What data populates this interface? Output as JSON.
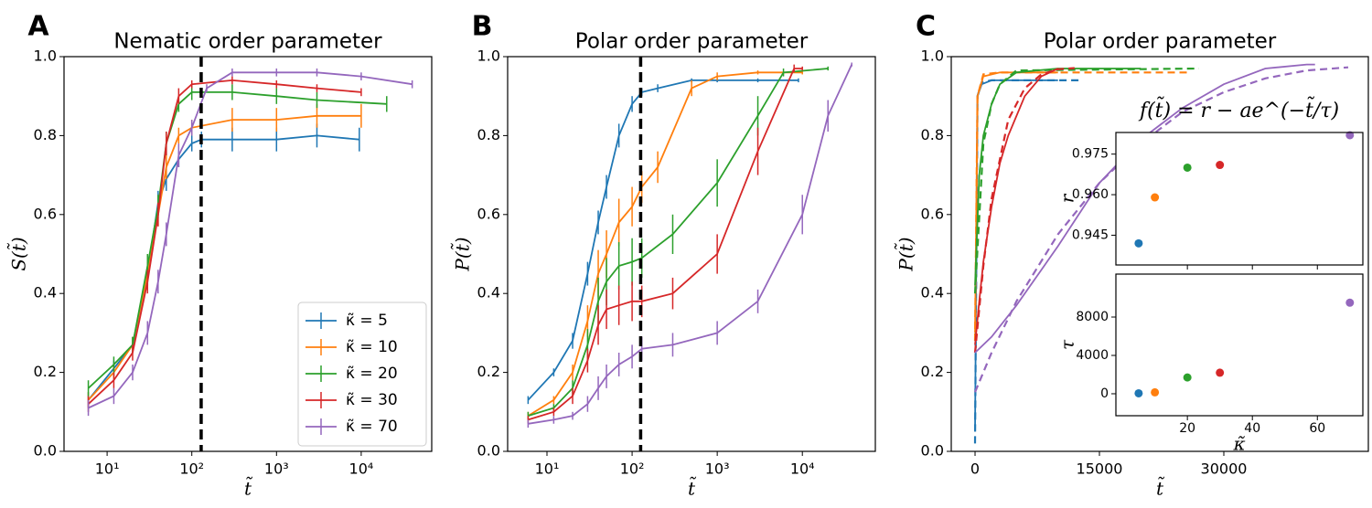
{
  "chart_data": [
    {
      "type": "line",
      "panel_label": "A",
      "title": "Nematic order parameter",
      "xlabel": "t̃",
      "ylabel": "S(t̃)",
      "xscale": "log",
      "xlim": [
        3.1,
        68000
      ],
      "ylim": [
        0,
        1
      ],
      "xticks": [
        {
          "value": 10,
          "label": "10¹"
        },
        {
          "value": 100,
          "label": "10²"
        },
        {
          "value": 1000,
          "label": "10³"
        },
        {
          "value": 10000,
          "label": "10⁴"
        }
      ],
      "yticks": [
        {
          "value": 0,
          "label": "0.0"
        },
        0.2,
        0.4,
        0.6,
        0.8,
        {
          "value": 1,
          "label": "1.0"
        }
      ],
      "vline": 129,
      "legend": "lower right",
      "series": [
        {
          "name": "κ̃ = 5",
          "color": "#1f77b4",
          "x": [
            6,
            12,
            20,
            30,
            40,
            50,
            70,
            100,
            130,
            300,
            1000,
            3000,
            9500
          ],
          "values": [
            0.13,
            0.21,
            0.27,
            0.45,
            0.63,
            0.69,
            0.74,
            0.78,
            0.79,
            0.79,
            0.79,
            0.8,
            0.79
          ],
          "errors": [
            0.02,
            0.02,
            0.02,
            0.03,
            0.03,
            0.03,
            0.02,
            0.02,
            0.02,
            0.03,
            0.03,
            0.03,
            0.03
          ]
        },
        {
          "name": "κ̃ = 10",
          "color": "#ff7f0e",
          "x": [
            6,
            12,
            20,
            30,
            40,
            50,
            70,
            100,
            300,
            1000,
            3000,
            10000
          ],
          "values": [
            0.13,
            0.2,
            0.27,
            0.45,
            0.6,
            0.72,
            0.8,
            0.82,
            0.84,
            0.84,
            0.85,
            0.85
          ],
          "errors": [
            0.02,
            0.02,
            0.02,
            0.03,
            0.03,
            0.03,
            0.02,
            0.02,
            0.03,
            0.03,
            0.03,
            0.03
          ]
        },
        {
          "name": "κ̃ = 20",
          "color": "#2ca02c",
          "x": [
            6,
            12,
            20,
            30,
            40,
            50,
            70,
            100,
            300,
            1000,
            3000,
            20000
          ],
          "values": [
            0.16,
            0.22,
            0.27,
            0.47,
            0.62,
            0.78,
            0.88,
            0.91,
            0.91,
            0.9,
            0.89,
            0.88
          ],
          "errors": [
            0.02,
            0.02,
            0.02,
            0.03,
            0.03,
            0.03,
            0.02,
            0.02,
            0.02,
            0.02,
            0.02,
            0.02
          ]
        },
        {
          "name": "κ̃ = 30",
          "color": "#d62728",
          "x": [
            6,
            12,
            20,
            30,
            40,
            50,
            70,
            100,
            300,
            1000,
            3000,
            10000
          ],
          "values": [
            0.12,
            0.18,
            0.25,
            0.43,
            0.6,
            0.78,
            0.9,
            0.93,
            0.94,
            0.93,
            0.92,
            0.91
          ],
          "errors": [
            0.02,
            0.02,
            0.02,
            0.03,
            0.03,
            0.03,
            0.02,
            0.01,
            0.01,
            0.01,
            0.01,
            0.01
          ]
        },
        {
          "name": "κ̃ = 70",
          "color": "#9467bd",
          "x": [
            6,
            12,
            20,
            30,
            40,
            50,
            70,
            100,
            150,
            300,
            1000,
            3000,
            10000,
            40000
          ],
          "values": [
            0.11,
            0.14,
            0.2,
            0.3,
            0.43,
            0.55,
            0.75,
            0.82,
            0.92,
            0.96,
            0.96,
            0.96,
            0.95,
            0.93
          ],
          "errors": [
            0.02,
            0.02,
            0.02,
            0.03,
            0.03,
            0.03,
            0.03,
            0.02,
            0.01,
            0.01,
            0.01,
            0.01,
            0.01,
            0.01
          ]
        }
      ]
    },
    {
      "type": "line",
      "panel_label": "B",
      "title": "Polar order parameter",
      "xlabel": "t̃",
      "ylabel": "P(t̃)",
      "xscale": "log",
      "xlim": [
        3.45,
        72000
      ],
      "ylim": [
        0,
        1
      ],
      "xticks": [
        {
          "value": 10,
          "label": "10¹"
        },
        {
          "value": 100,
          "label": "10²"
        },
        {
          "value": 1000,
          "label": "10³"
        },
        {
          "value": 10000,
          "label": "10⁴"
        }
      ],
      "yticks": [
        {
          "value": 0,
          "label": "0.0"
        },
        0.2,
        0.4,
        0.6,
        0.8,
        {
          "value": 1,
          "label": "1.0"
        }
      ],
      "vline": 126,
      "series": [
        {
          "color": "#1f77b4",
          "x": [
            6,
            12,
            20,
            30,
            40,
            50,
            70,
            100,
            130,
            200,
            500,
            1000,
            3000,
            9000
          ],
          "values": [
            0.13,
            0.2,
            0.28,
            0.45,
            0.58,
            0.67,
            0.8,
            0.88,
            0.91,
            0.92,
            0.94,
            0.94,
            0.94,
            0.94
          ],
          "errors": [
            0.01,
            0.01,
            0.02,
            0.03,
            0.03,
            0.03,
            0.03,
            0.02,
            0.01,
            0.01,
            0.005,
            0.005,
            0.005,
            0.005
          ]
        },
        {
          "color": "#ff7f0e",
          "x": [
            6,
            12,
            20,
            30,
            40,
            50,
            70,
            100,
            130,
            200,
            500,
            1000,
            3000,
            10000
          ],
          "values": [
            0.09,
            0.13,
            0.2,
            0.33,
            0.45,
            0.5,
            0.58,
            0.62,
            0.67,
            0.72,
            0.92,
            0.95,
            0.96,
            0.96
          ],
          "errors": [
            0.01,
            0.01,
            0.02,
            0.04,
            0.06,
            0.06,
            0.06,
            0.05,
            0.04,
            0.04,
            0.02,
            0.01,
            0.005,
            0.005
          ]
        },
        {
          "color": "#2ca02c",
          "x": [
            6,
            12,
            20,
            30,
            40,
            50,
            70,
            100,
            130,
            300,
            1000,
            3000,
            6000,
            20000
          ],
          "values": [
            0.09,
            0.11,
            0.16,
            0.27,
            0.38,
            0.43,
            0.47,
            0.48,
            0.49,
            0.55,
            0.68,
            0.85,
            0.96,
            0.97
          ],
          "errors": [
            0.01,
            0.01,
            0.02,
            0.04,
            0.06,
            0.06,
            0.06,
            0.06,
            0.05,
            0.05,
            0.06,
            0.05,
            0.01,
            0.005
          ]
        },
        {
          "color": "#d62728",
          "x": [
            6,
            12,
            20,
            30,
            40,
            50,
            70,
            100,
            130,
            300,
            1000,
            3000,
            8000,
            10000
          ],
          "values": [
            0.08,
            0.1,
            0.14,
            0.23,
            0.32,
            0.36,
            0.37,
            0.38,
            0.38,
            0.4,
            0.5,
            0.76,
            0.97,
            0.97
          ],
          "errors": [
            0.01,
            0.01,
            0.02,
            0.03,
            0.05,
            0.05,
            0.05,
            0.05,
            0.04,
            0.04,
            0.05,
            0.06,
            0.01,
            0.005
          ]
        },
        {
          "color": "#9467bd",
          "x": [
            6,
            12,
            20,
            30,
            40,
            50,
            70,
            100,
            130,
            300,
            1000,
            3000,
            10000,
            20000,
            38000
          ],
          "values": [
            0.07,
            0.08,
            0.09,
            0.12,
            0.16,
            0.19,
            0.22,
            0.24,
            0.26,
            0.27,
            0.3,
            0.38,
            0.6,
            0.85,
            0.98
          ],
          "errors": [
            0.01,
            0.01,
            0.01,
            0.02,
            0.03,
            0.03,
            0.03,
            0.03,
            0.03,
            0.03,
            0.03,
            0.03,
            0.05,
            0.04,
            0.005
          ]
        }
      ]
    },
    {
      "type": "line",
      "panel_label": "C",
      "title": "Polar order parameter",
      "xlabel": "t̃",
      "ylabel": "P(t̃)",
      "xlim": [
        -2870,
        47430
      ],
      "ylim": [
        0,
        1
      ],
      "xticks": [
        0,
        15000,
        30000
      ],
      "yticks": [
        {
          "value": 0,
          "label": "0.0"
        },
        0.2,
        0.4,
        0.6,
        0.8,
        {
          "value": 1,
          "label": "1.0"
        }
      ],
      "annotation": "f(t̃) = r − ae^(−t̃/τ)",
      "series": [
        {
          "color": "#1f77b4",
          "x": [
            0,
            300,
            800,
            2000,
            5000,
            10000
          ],
          "values": [
            0.05,
            0.9,
            0.93,
            0.94,
            0.94,
            0.94
          ]
        },
        {
          "color": "#1f77b4",
          "dashed": true,
          "x": [
            0,
            300,
            800,
            2000,
            13000
          ],
          "values": [
            0.02,
            0.9,
            0.935,
            0.94,
            0.94
          ]
        },
        {
          "color": "#ff7f0e",
          "x": [
            0,
            300,
            1000,
            3000,
            10000
          ],
          "values": [
            0.3,
            0.9,
            0.95,
            0.96,
            0.96
          ]
        },
        {
          "color": "#ff7f0e",
          "dashed": true,
          "x": [
            0,
            300,
            1000,
            3000,
            26000
          ],
          "values": [
            0.28,
            0.9,
            0.955,
            0.96,
            0.96
          ]
        },
        {
          "color": "#2ca02c",
          "x": [
            0,
            500,
            1000,
            2000,
            3000,
            5000,
            10000,
            20000
          ],
          "values": [
            0.42,
            0.7,
            0.8,
            0.88,
            0.93,
            0.96,
            0.97,
            0.97
          ]
        },
        {
          "color": "#2ca02c",
          "dashed": true,
          "x": [
            0,
            1000,
            2000,
            3000,
            5000,
            27000
          ],
          "values": [
            0.4,
            0.78,
            0.88,
            0.93,
            0.965,
            0.97
          ]
        },
        {
          "color": "#d62728",
          "x": [
            0,
            500,
            1000,
            2000,
            3000,
            4000,
            6000,
            8000,
            10000
          ],
          "values": [
            0.27,
            0.38,
            0.48,
            0.62,
            0.73,
            0.8,
            0.9,
            0.95,
            0.97
          ]
        },
        {
          "color": "#d62728",
          "dashed": true,
          "x": [
            0,
            1000,
            2000,
            4000,
            6000,
            8000,
            10000,
            12000
          ],
          "values": [
            0.25,
            0.47,
            0.64,
            0.84,
            0.92,
            0.955,
            0.968,
            0.971
          ]
        },
        {
          "color": "#9467bd",
          "x": [
            0,
            2000,
            5000,
            10000,
            15000,
            20000,
            25000,
            30000,
            35000,
            40000,
            41000
          ],
          "values": [
            0.25,
            0.29,
            0.37,
            0.52,
            0.68,
            0.79,
            0.87,
            0.93,
            0.97,
            0.98,
            0.98
          ]
        },
        {
          "color": "#9467bd",
          "dashed": true,
          "x": [
            0,
            2000,
            5000,
            10000,
            15000,
            20000,
            25000,
            30000,
            35000,
            40000,
            45000
          ],
          "values": [
            0.15,
            0.25,
            0.38,
            0.55,
            0.68,
            0.78,
            0.86,
            0.91,
            0.945,
            0.965,
            0.973
          ]
        }
      ]
    },
    {
      "type": "scatter",
      "ylabel": "r",
      "xlim": [
        -2,
        74
      ],
      "ylim": [
        0.934,
        0.983
      ],
      "xticks": [
        20,
        40,
        60
      ],
      "yticks": [
        0.945,
        {
          "value": 0.96,
          "label": "0.960"
        },
        0.975
      ],
      "x": [
        5,
        10,
        20,
        30,
        70
      ],
      "values": [
        0.942,
        0.959,
        0.97,
        0.971,
        0.982
      ],
      "colors": [
        "#1f77b4",
        "#ff7f0e",
        "#2ca02c",
        "#d62728",
        "#9467bd"
      ]
    },
    {
      "type": "scatter",
      "ylabel": "τ",
      "xlabel": "κ̃",
      "xlim": [
        -2,
        74
      ],
      "ylim": [
        -2290,
        12480
      ],
      "xticks": [
        20,
        40,
        60
      ],
      "yticks": [
        0,
        4000,
        8000
      ],
      "x": [
        5,
        10,
        20,
        30,
        70
      ],
      "values": [
        50,
        150,
        1700,
        2200,
        9500
      ],
      "colors": [
        "#1f77b4",
        "#ff7f0e",
        "#2ca02c",
        "#d62728",
        "#9467bd"
      ]
    }
  ]
}
